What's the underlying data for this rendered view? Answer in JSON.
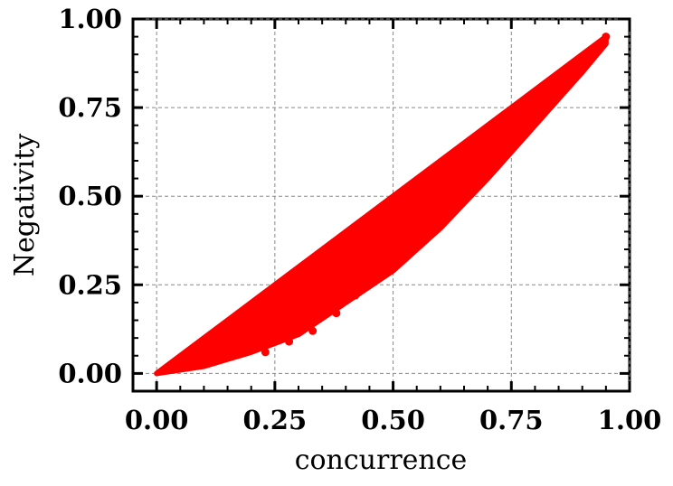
{
  "chart_data": {
    "type": "scatter",
    "title": "",
    "xlabel": "concurrence",
    "ylabel": "Negativity",
    "xlim": [
      -0.05,
      1.0
    ],
    "ylim": [
      -0.05,
      1.0
    ],
    "xticks": [
      "0.00",
      "0.25",
      "0.50",
      "0.75",
      "1.00"
    ],
    "yticks": [
      "0.00",
      "0.25",
      "0.50",
      "0.75",
      "1.00"
    ],
    "grid": true,
    "marker_color": "#ff0000",
    "series": [
      {
        "upper_bound": [
          [
            0.0,
            0.0
          ],
          [
            0.25,
            0.25
          ],
          [
            0.5,
            0.5
          ],
          [
            0.75,
            0.75
          ],
          [
            0.95,
            0.95
          ]
        ],
        "lower_bound": [
          [
            0.0,
            0.0
          ],
          [
            0.1,
            0.02
          ],
          [
            0.2,
            0.06
          ],
          [
            0.3,
            0.11
          ],
          [
            0.4,
            0.2
          ],
          [
            0.5,
            0.29
          ],
          [
            0.6,
            0.41
          ],
          [
            0.7,
            0.55
          ],
          [
            0.8,
            0.7
          ],
          [
            0.9,
            0.85
          ],
          [
            0.95,
            0.93
          ]
        ],
        "outliers": [
          [
            0.33,
            0.12
          ],
          [
            0.38,
            0.17
          ],
          [
            0.42,
            0.22
          ],
          [
            0.45,
            0.25
          ],
          [
            0.5,
            0.33
          ],
          [
            0.55,
            0.44
          ],
          [
            0.58,
            0.5
          ],
          [
            0.62,
            0.53
          ],
          [
            0.66,
            0.58
          ],
          [
            0.7,
            0.63
          ],
          [
            0.74,
            0.69
          ],
          [
            0.28,
            0.09
          ],
          [
            0.23,
            0.06
          ],
          [
            0.47,
            0.3
          ],
          [
            0.52,
            0.38
          ],
          [
            0.6,
            0.47
          ]
        ]
      }
    ]
  }
}
